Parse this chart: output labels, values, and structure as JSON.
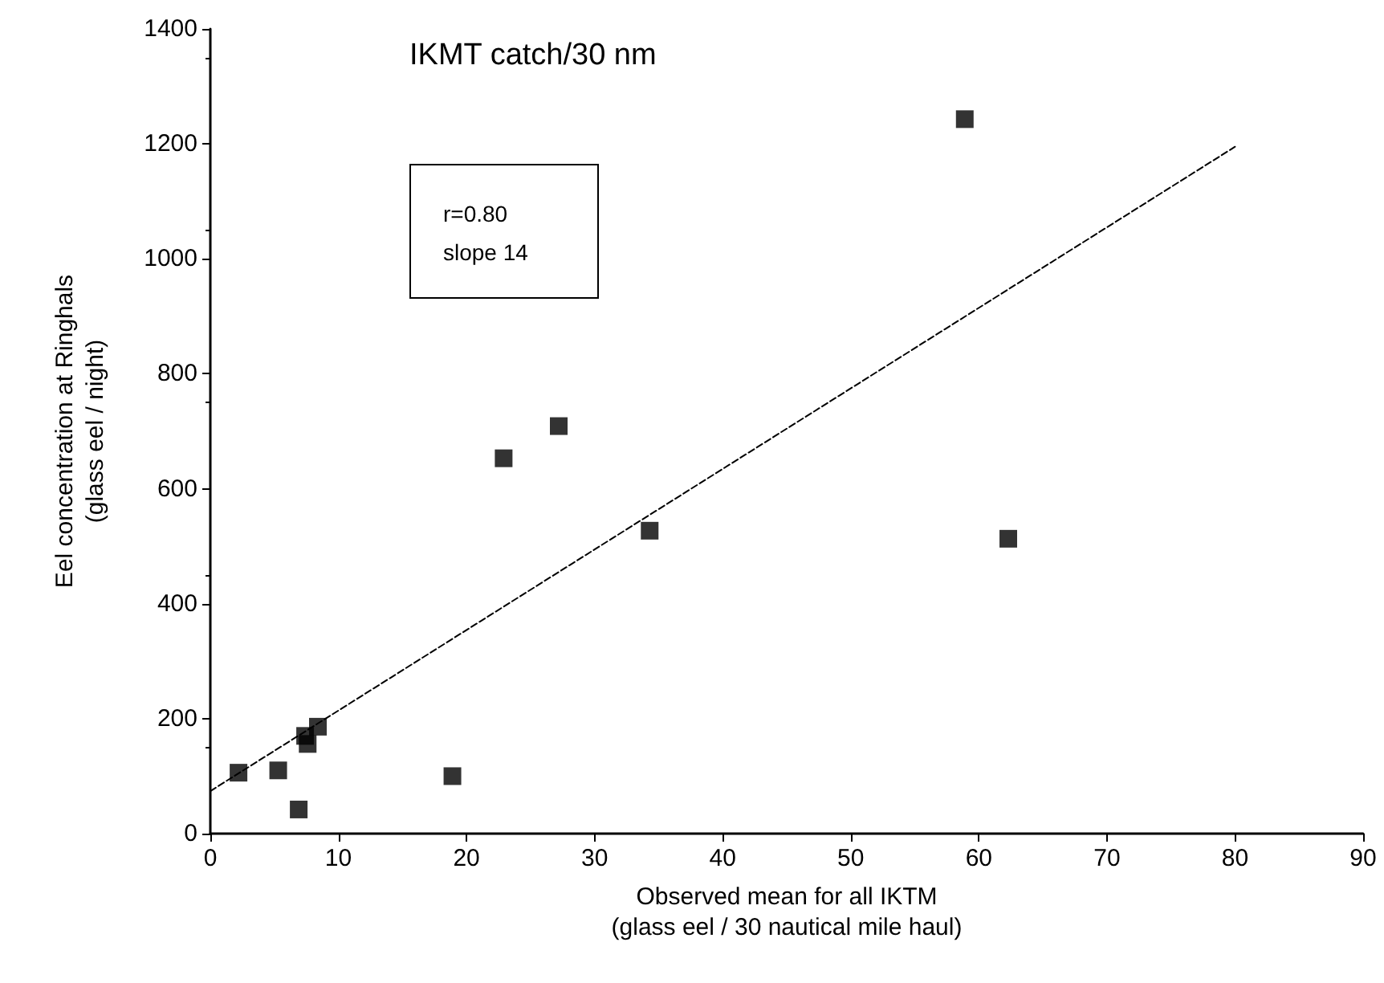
{
  "chart_data": {
    "type": "scatter",
    "title": "IKMT catch/30 nm",
    "xlabel": "Observed mean for all IKTM\n(glass eel / 30 nautical mile haul)",
    "ylabel": "Eel concentration at Ringhals\n(glass eel / night)",
    "annotations": [
      "r=0.80",
      "slope 14"
    ],
    "series": [
      {
        "color": "#000000",
        "marker": "square",
        "x": [
          2.2,
          5.3,
          6.9,
          7.6,
          7.4,
          8.4,
          18.9,
          22.9,
          27.2,
          34.3,
          58.9,
          62.3
        ],
        "values": [
          106,
          110,
          42,
          156,
          170,
          186,
          100,
          653,
          709,
          527,
          1243,
          513
        ]
      },
      {
        "type": "line",
        "color": "#000000",
        "line_style": "dashed",
        "marker": "none",
        "x": [
          0,
          80
        ],
        "values": [
          74,
          1195
        ]
      }
    ],
    "xlim": [
      0,
      90
    ],
    "xticks": [
      0,
      10,
      20,
      30,
      40,
      50,
      60,
      70,
      80,
      90
    ],
    "ylim": [
      0,
      1400
    ],
    "yticks": [
      0,
      200,
      400,
      600,
      800,
      1000,
      1200,
      1400
    ],
    "grid": false
  }
}
